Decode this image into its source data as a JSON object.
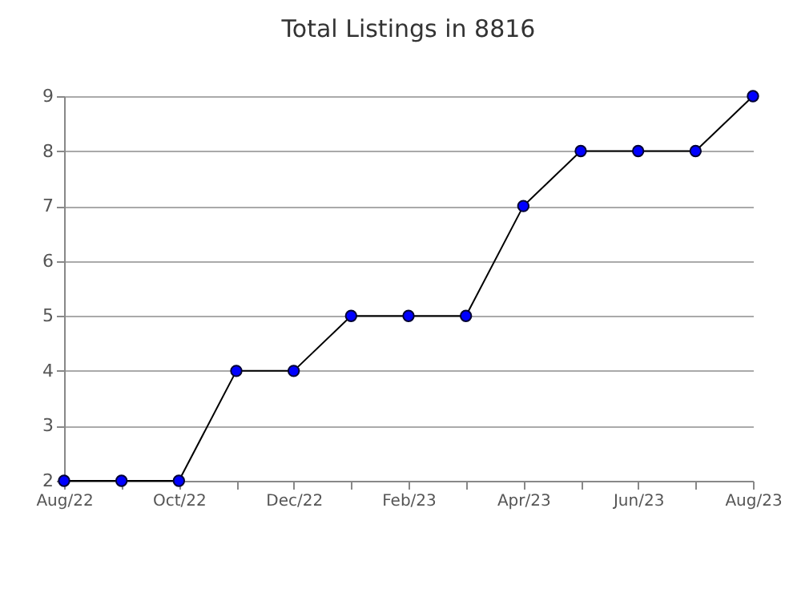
{
  "chart_data": {
    "type": "line",
    "title": "Total Listings in 8816",
    "categories": [
      "Aug/22",
      null,
      "Oct/22",
      null,
      "Dec/22",
      null,
      "Feb/23",
      null,
      "Apr/23",
      null,
      "Jun/23",
      null,
      "Aug/23"
    ],
    "series": [
      {
        "color": "#0000ff",
        "values": [
          2,
          2,
          2,
          4,
          4,
          5,
          5,
          5,
          7,
          8,
          8,
          8,
          9
        ]
      }
    ],
    "ylim": [
      2,
      9
    ],
    "yticks": [
      2,
      3,
      4,
      5,
      6,
      7,
      8,
      9
    ],
    "grid": "y",
    "marker": "circle",
    "line_style": "solid",
    "legend": false
  }
}
